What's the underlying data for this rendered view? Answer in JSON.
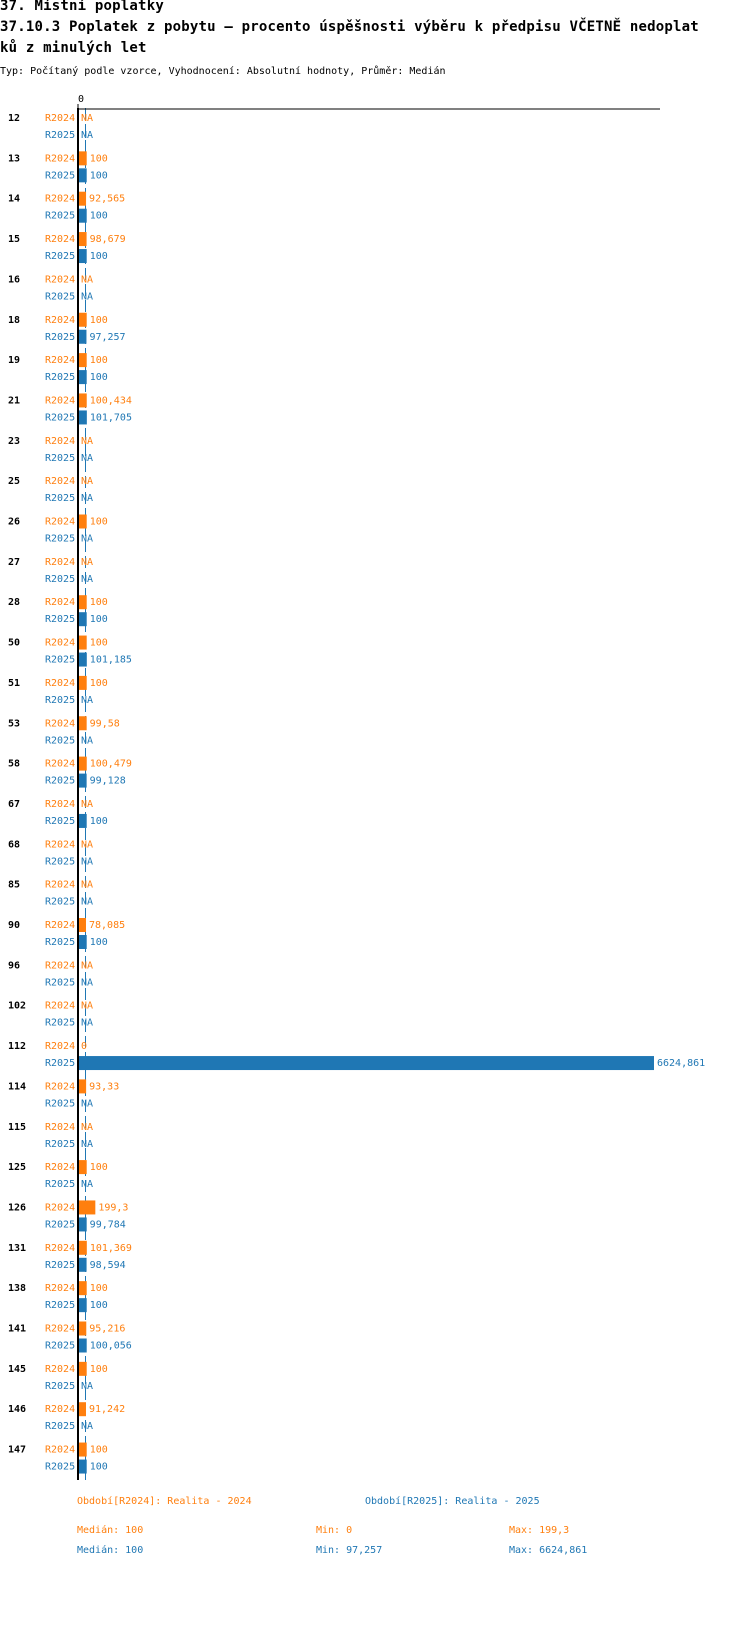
{
  "header": {
    "section": "37. Místní poplatky",
    "title_line1": "37.10.3 Poplatek z pobytu – procento úspěšnosti výběru k předpisu VČETNĚ nedoplat",
    "title_line2": "ků z minulých let",
    "subtitle": "Typ: Počítaný podle vzorce, Vyhodnocení: Absolutní hodnoty, Průměr: Medián"
  },
  "colors": {
    "R2024": "#ff7f0e",
    "R2025": "#1f77b4"
  },
  "chart_data": {
    "type": "bar",
    "orientation": "horizontal",
    "x_tick_labels": [
      "0"
    ],
    "series_labels": [
      "R2024",
      "R2025"
    ],
    "categories": [
      "12",
      "13",
      "14",
      "15",
      "16",
      "18",
      "19",
      "21",
      "23",
      "25",
      "26",
      "27",
      "28",
      "50",
      "51",
      "53",
      "58",
      "67",
      "68",
      "85",
      "90",
      "96",
      "102",
      "112",
      "114",
      "115",
      "125",
      "126",
      "131",
      "138",
      "141",
      "145",
      "146",
      "147"
    ],
    "series": [
      {
        "name": "R2024",
        "values": [
          null,
          100,
          92.565,
          98.679,
          null,
          100,
          100,
          100.434,
          null,
          null,
          100,
          null,
          100,
          100,
          100,
          99.58,
          100.479,
          null,
          null,
          null,
          78.085,
          null,
          null,
          0,
          93.33,
          null,
          100,
          199.3,
          101.369,
          100,
          95.216,
          100,
          91.242,
          100
        ],
        "labels": [
          "NA",
          "100",
          "92,565",
          "98,679",
          "NA",
          "100",
          "100",
          "100,434",
          "NA",
          "NA",
          "100",
          "NA",
          "100",
          "100",
          "100",
          "99,58",
          "100,479",
          "NA",
          "NA",
          "NA",
          "78,085",
          "NA",
          "NA",
          "0",
          "93,33",
          "NA",
          "100",
          "199,3",
          "101,369",
          "100",
          "95,216",
          "100",
          "91,242",
          "100"
        ]
      },
      {
        "name": "R2025",
        "values": [
          null,
          100,
          100,
          100,
          null,
          97.257,
          100,
          101.705,
          null,
          null,
          null,
          null,
          100,
          101.185,
          null,
          null,
          99.128,
          100,
          null,
          null,
          100,
          null,
          null,
          6624.861,
          null,
          null,
          null,
          99.784,
          98.594,
          100,
          100.056,
          null,
          null,
          100
        ],
        "labels": [
          "NA",
          "100",
          "100",
          "100",
          "NA",
          "97,257",
          "100",
          "101,705",
          "NA",
          "NA",
          "NA",
          "NA",
          "100",
          "101,185",
          "NA",
          "NA",
          "99,128",
          "100",
          "NA",
          "NA",
          "100",
          "NA",
          "NA",
          "6624,861",
          "NA",
          "NA",
          "NA",
          "99,784",
          "98,594",
          "100",
          "100,056",
          "NA",
          "NA",
          "100"
        ]
      }
    ],
    "xmax": 6624.861,
    "median_line": 100
  },
  "legend": {
    "r2024_title": "Období[R2024]: Realita - 2024",
    "r2025_title": "Období[R2025]: Realita - 2025",
    "r2024_median": "Medián: 100",
    "r2024_min": "Min: 0",
    "r2024_max": "Max: 199,3",
    "r2025_median": "Medián: 100",
    "r2025_min": "Min: 97,257",
    "r2025_max": "Max: 6624,861"
  }
}
